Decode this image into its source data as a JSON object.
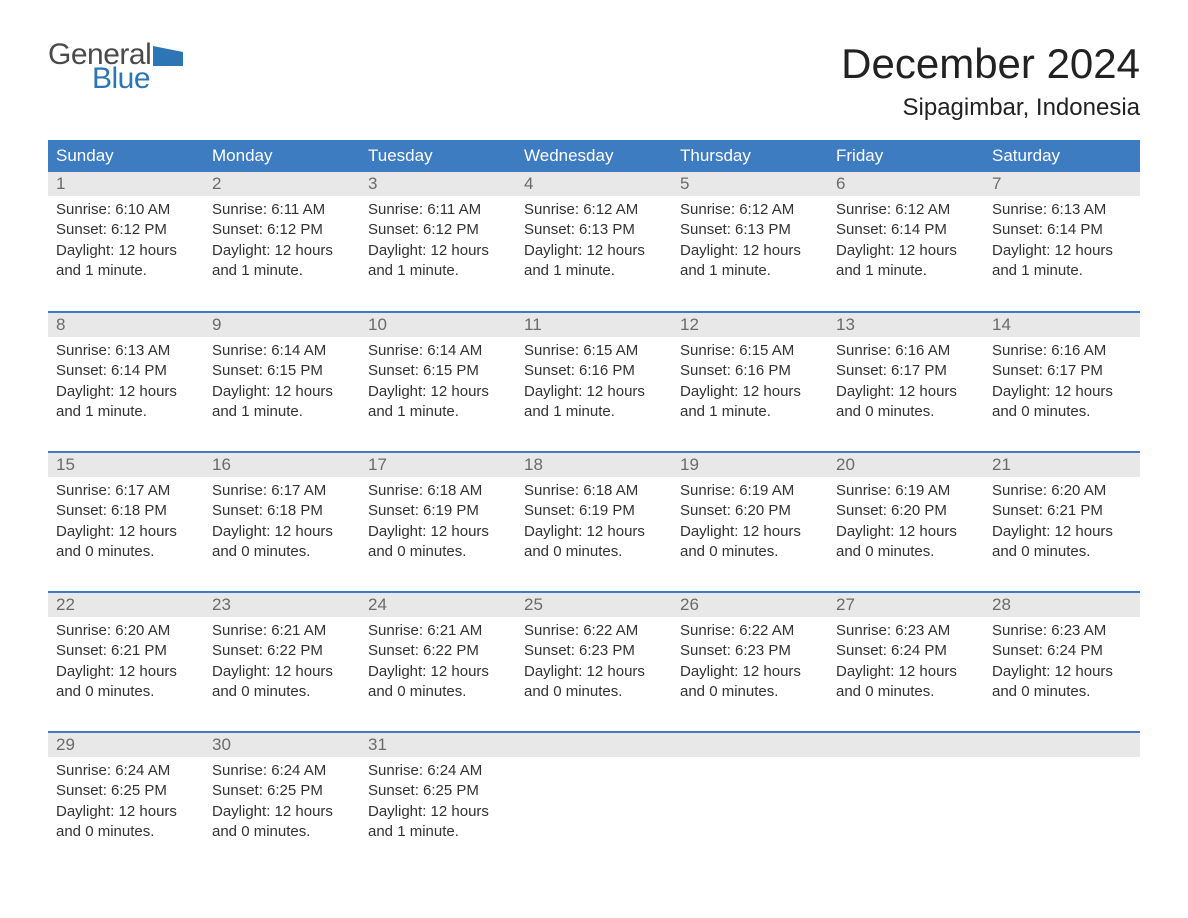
{
  "logo": {
    "text1": "General",
    "text2": "Blue",
    "flag_color": "#2e75b6",
    "text1_color": "#4a4a4a"
  },
  "title": "December 2024",
  "location": "Sipagimbar, Indonesia",
  "colors": {
    "header_bg": "#3d7cc0",
    "header_text": "#ffffff",
    "daynum_bg": "#e8e8e8",
    "daynum_text": "#6b6b6b",
    "body_text": "#333333",
    "row_divider": "#3d7cc0",
    "page_bg": "#ffffff"
  },
  "typography": {
    "title_fontsize": 42,
    "location_fontsize": 24,
    "header_fontsize": 17,
    "daynum_fontsize": 17,
    "body_fontsize": 15
  },
  "day_headers": [
    "Sunday",
    "Monday",
    "Tuesday",
    "Wednesday",
    "Thursday",
    "Friday",
    "Saturday"
  ],
  "weeks": [
    [
      {
        "num": "1",
        "sunrise": "Sunrise: 6:10 AM",
        "sunset": "Sunset: 6:12 PM",
        "daylight": "Daylight: 12 hours and 1 minute."
      },
      {
        "num": "2",
        "sunrise": "Sunrise: 6:11 AM",
        "sunset": "Sunset: 6:12 PM",
        "daylight": "Daylight: 12 hours and 1 minute."
      },
      {
        "num": "3",
        "sunrise": "Sunrise: 6:11 AM",
        "sunset": "Sunset: 6:12 PM",
        "daylight": "Daylight: 12 hours and 1 minute."
      },
      {
        "num": "4",
        "sunrise": "Sunrise: 6:12 AM",
        "sunset": "Sunset: 6:13 PM",
        "daylight": "Daylight: 12 hours and 1 minute."
      },
      {
        "num": "5",
        "sunrise": "Sunrise: 6:12 AM",
        "sunset": "Sunset: 6:13 PM",
        "daylight": "Daylight: 12 hours and 1 minute."
      },
      {
        "num": "6",
        "sunrise": "Sunrise: 6:12 AM",
        "sunset": "Sunset: 6:14 PM",
        "daylight": "Daylight: 12 hours and 1 minute."
      },
      {
        "num": "7",
        "sunrise": "Sunrise: 6:13 AM",
        "sunset": "Sunset: 6:14 PM",
        "daylight": "Daylight: 12 hours and 1 minute."
      }
    ],
    [
      {
        "num": "8",
        "sunrise": "Sunrise: 6:13 AM",
        "sunset": "Sunset: 6:14 PM",
        "daylight": "Daylight: 12 hours and 1 minute."
      },
      {
        "num": "9",
        "sunrise": "Sunrise: 6:14 AM",
        "sunset": "Sunset: 6:15 PM",
        "daylight": "Daylight: 12 hours and 1 minute."
      },
      {
        "num": "10",
        "sunrise": "Sunrise: 6:14 AM",
        "sunset": "Sunset: 6:15 PM",
        "daylight": "Daylight: 12 hours and 1 minute."
      },
      {
        "num": "11",
        "sunrise": "Sunrise: 6:15 AM",
        "sunset": "Sunset: 6:16 PM",
        "daylight": "Daylight: 12 hours and 1 minute."
      },
      {
        "num": "12",
        "sunrise": "Sunrise: 6:15 AM",
        "sunset": "Sunset: 6:16 PM",
        "daylight": "Daylight: 12 hours and 1 minute."
      },
      {
        "num": "13",
        "sunrise": "Sunrise: 6:16 AM",
        "sunset": "Sunset: 6:17 PM",
        "daylight": "Daylight: 12 hours and 0 minutes."
      },
      {
        "num": "14",
        "sunrise": "Sunrise: 6:16 AM",
        "sunset": "Sunset: 6:17 PM",
        "daylight": "Daylight: 12 hours and 0 minutes."
      }
    ],
    [
      {
        "num": "15",
        "sunrise": "Sunrise: 6:17 AM",
        "sunset": "Sunset: 6:18 PM",
        "daylight": "Daylight: 12 hours and 0 minutes."
      },
      {
        "num": "16",
        "sunrise": "Sunrise: 6:17 AM",
        "sunset": "Sunset: 6:18 PM",
        "daylight": "Daylight: 12 hours and 0 minutes."
      },
      {
        "num": "17",
        "sunrise": "Sunrise: 6:18 AM",
        "sunset": "Sunset: 6:19 PM",
        "daylight": "Daylight: 12 hours and 0 minutes."
      },
      {
        "num": "18",
        "sunrise": "Sunrise: 6:18 AM",
        "sunset": "Sunset: 6:19 PM",
        "daylight": "Daylight: 12 hours and 0 minutes."
      },
      {
        "num": "19",
        "sunrise": "Sunrise: 6:19 AM",
        "sunset": "Sunset: 6:20 PM",
        "daylight": "Daylight: 12 hours and 0 minutes."
      },
      {
        "num": "20",
        "sunrise": "Sunrise: 6:19 AM",
        "sunset": "Sunset: 6:20 PM",
        "daylight": "Daylight: 12 hours and 0 minutes."
      },
      {
        "num": "21",
        "sunrise": "Sunrise: 6:20 AM",
        "sunset": "Sunset: 6:21 PM",
        "daylight": "Daylight: 12 hours and 0 minutes."
      }
    ],
    [
      {
        "num": "22",
        "sunrise": "Sunrise: 6:20 AM",
        "sunset": "Sunset: 6:21 PM",
        "daylight": "Daylight: 12 hours and 0 minutes."
      },
      {
        "num": "23",
        "sunrise": "Sunrise: 6:21 AM",
        "sunset": "Sunset: 6:22 PM",
        "daylight": "Daylight: 12 hours and 0 minutes."
      },
      {
        "num": "24",
        "sunrise": "Sunrise: 6:21 AM",
        "sunset": "Sunset: 6:22 PM",
        "daylight": "Daylight: 12 hours and 0 minutes."
      },
      {
        "num": "25",
        "sunrise": "Sunrise: 6:22 AM",
        "sunset": "Sunset: 6:23 PM",
        "daylight": "Daylight: 12 hours and 0 minutes."
      },
      {
        "num": "26",
        "sunrise": "Sunrise: 6:22 AM",
        "sunset": "Sunset: 6:23 PM",
        "daylight": "Daylight: 12 hours and 0 minutes."
      },
      {
        "num": "27",
        "sunrise": "Sunrise: 6:23 AM",
        "sunset": "Sunset: 6:24 PM",
        "daylight": "Daylight: 12 hours and 0 minutes."
      },
      {
        "num": "28",
        "sunrise": "Sunrise: 6:23 AM",
        "sunset": "Sunset: 6:24 PM",
        "daylight": "Daylight: 12 hours and 0 minutes."
      }
    ],
    [
      {
        "num": "29",
        "sunrise": "Sunrise: 6:24 AM",
        "sunset": "Sunset: 6:25 PM",
        "daylight": "Daylight: 12 hours and 0 minutes."
      },
      {
        "num": "30",
        "sunrise": "Sunrise: 6:24 AM",
        "sunset": "Sunset: 6:25 PM",
        "daylight": "Daylight: 12 hours and 0 minutes."
      },
      {
        "num": "31",
        "sunrise": "Sunrise: 6:24 AM",
        "sunset": "Sunset: 6:25 PM",
        "daylight": "Daylight: 12 hours and 1 minute."
      },
      null,
      null,
      null,
      null
    ]
  ]
}
